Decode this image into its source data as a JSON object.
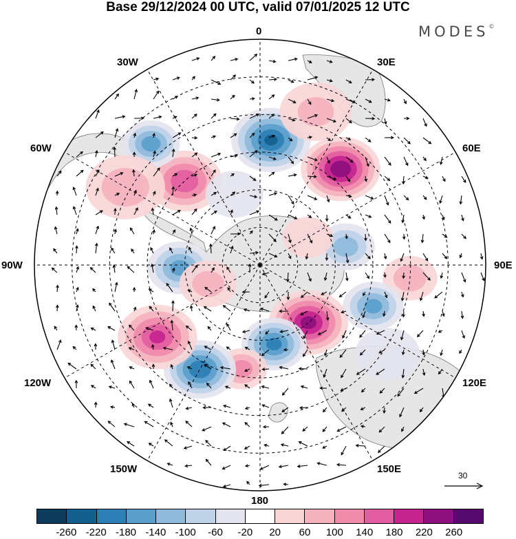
{
  "title": "Base 29/12/2024 00 UTC, valid 07/01/2025 12 UTC",
  "brand": "MODES",
  "brand_mark": "©",
  "longitude_labels": {
    "top": "0",
    "nne": "30E",
    "ene": "60E",
    "east": "90E",
    "ese": "120E",
    "sse": "150E",
    "bottom": "180",
    "ssw": "150W",
    "wsw": "120W",
    "west": "90W",
    "wnw": "60W",
    "nnw": "30W"
  },
  "reference_vector_label": "30",
  "colorbar": {
    "ticks": [
      "-260",
      "-220",
      "-180",
      "-140",
      "-100",
      "-60",
      "-20",
      "20",
      "60",
      "100",
      "140",
      "180",
      "220",
      "260"
    ],
    "colors": [
      "#0d3b5c",
      "#13608f",
      "#2d7fb5",
      "#5a9fcc",
      "#8fbadb",
      "#bfd2e8",
      "#e4e4ef",
      "#ffffff",
      "#f9d6d6",
      "#f5b3bf",
      "#f08bab",
      "#e35ea0",
      "#c4248e",
      "#8e0f7e",
      "#560a6e"
    ]
  },
  "map_colors": {
    "land": "#e6e6e6",
    "coast": "#777777",
    "boundary": "#000000"
  },
  "anomalies": [
    {
      "lon": 5,
      "lat": -40,
      "value": -220,
      "r": 55
    },
    {
      "lon": 40,
      "lat": -40,
      "value": 250,
      "r": 55
    },
    {
      "lon": -42,
      "lat": -45,
      "value": 170,
      "r": 52
    },
    {
      "lon": -42,
      "lat": -25,
      "value": -160,
      "r": 40
    },
    {
      "lon": 78,
      "lat": -55,
      "value": -120,
      "r": 40
    },
    {
      "lon": 95,
      "lat": -30,
      "value": 80,
      "r": 38
    },
    {
      "lon": 110,
      "lat": -42,
      "value": -150,
      "r": 42
    },
    {
      "lon": 140,
      "lat": -60,
      "value": 230,
      "r": 55
    },
    {
      "lon": 170,
      "lat": -58,
      "value": -190,
      "r": 45
    },
    {
      "lon": -170,
      "lat": -48,
      "value": 120,
      "r": 35
    },
    {
      "lon": -150,
      "lat": -42,
      "value": -210,
      "r": 50
    },
    {
      "lon": -125,
      "lat": -40,
      "value": 180,
      "r": 55
    },
    {
      "lon": -92,
      "lat": -58,
      "value": -150,
      "r": 45
    },
    {
      "lon": -60,
      "lat": -28,
      "value": 80,
      "r": 55
    },
    {
      "lon": 20,
      "lat": -25,
      "value": 60,
      "r": 50
    },
    {
      "lon": -110,
      "lat": -68,
      "value": 70,
      "r": 40
    },
    {
      "lon": 60,
      "lat": -68,
      "value": 40,
      "r": 35
    },
    {
      "lon": 125,
      "lat": -28,
      "value": -50,
      "r": 45
    },
    {
      "lon": -20,
      "lat": -60,
      "value": -40,
      "r": 40
    }
  ]
}
